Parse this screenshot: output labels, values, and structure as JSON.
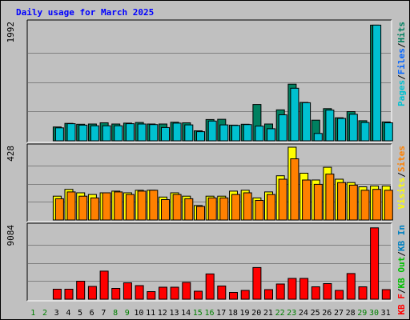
{
  "title": "Daily usage for March 2025",
  "colors": {
    "background": "#c0c0c0",
    "panel": "#c0c0c0",
    "grid": "#808080",
    "pages": "#00c0d0",
    "files": "#0064ff",
    "hits": "#008060",
    "visits": "#ffff00",
    "sites": "#ff8000",
    "kb_in": "#0080c0",
    "kb_out": "#00c000",
    "kb_f": "#ff0000",
    "weekday_label": "#000000",
    "weekend_label": "#008000"
  },
  "chart_data": {
    "type": "bar",
    "days": [
      "1",
      "2",
      "3",
      "4",
      "5",
      "6",
      "7",
      "8",
      "9",
      "10",
      "11",
      "12",
      "13",
      "14",
      "15",
      "16",
      "17",
      "18",
      "19",
      "20",
      "21",
      "22",
      "23",
      "24",
      "25",
      "26",
      "27",
      "28",
      "29",
      "30",
      "31"
    ],
    "weekend_days": [
      "1",
      "2",
      "8",
      "9",
      "15",
      "16",
      "22",
      "23",
      "29",
      "30"
    ],
    "panels": [
      {
        "id": "hits",
        "max_label": "1992",
        "ymax": 1992,
        "legend": [
          {
            "text": "Pages",
            "color": "#00c0d0"
          },
          {
            "text": "/",
            "color": "#000000"
          },
          {
            "text": "Files",
            "color": "#0064ff"
          },
          {
            "text": "/",
            "color": "#000000"
          },
          {
            "text": "Hits",
            "color": "#008060"
          }
        ],
        "series": [
          {
            "key": "hits",
            "color": "#008060",
            "values": [
              null,
              null,
              235,
              295,
              280,
              285,
              305,
              285,
              300,
              310,
              285,
              285,
              315,
              305,
              170,
              360,
              365,
              265,
              280,
              615,
              285,
              525,
              960,
              650,
              350,
              545,
              390,
              495,
              340,
              1960,
              320
            ]
          },
          {
            "key": "pages",
            "color": "#00c0d0",
            "values": [
              null,
              null,
              220,
              290,
              265,
              255,
              255,
              255,
              290,
              285,
              275,
              225,
              300,
              270,
              155,
              335,
              270,
              260,
              275,
              250,
              205,
              440,
              890,
              645,
              125,
              520,
              380,
              450,
              310,
              1960,
              305
            ]
          }
        ]
      },
      {
        "id": "visits",
        "max_label": "428",
        "ymax": 428,
        "legend": [
          {
            "text": "Visits",
            "color": "#ffff00"
          },
          {
            "text": "/",
            "color": "#000000"
          },
          {
            "text": "Sites",
            "color": "#ff8000"
          }
        ],
        "series": [
          {
            "key": "visits",
            "color": "#ffff00",
            "values": [
              null,
              null,
              140,
              180,
              160,
              150,
              160,
              170,
              160,
              175,
              175,
              135,
              160,
              140,
              85,
              140,
              140,
              170,
              175,
              130,
              165,
              260,
              428,
              275,
              235,
              310,
              240,
              220,
              195,
              200,
              200
            ]
          },
          {
            "key": "sites",
            "color": "#ff8000",
            "values": [
              null,
              null,
              125,
              165,
              140,
              130,
              160,
              165,
              150,
              170,
              175,
              120,
              150,
              125,
              80,
              130,
              130,
              150,
              160,
              115,
              150,
              240,
              360,
              235,
              210,
              270,
              220,
              205,
              175,
              180,
              175
            ]
          }
        ]
      },
      {
        "id": "kbytes",
        "max_label": "9084",
        "ymax": 9084,
        "legend": [
          {
            "text": "KB F",
            "color": "#ff0000"
          },
          {
            "text": "/",
            "color": "#000000"
          },
          {
            "text": "KB Out",
            "color": "#00c000"
          },
          {
            "text": "/",
            "color": "#000000"
          },
          {
            "text": "KB In",
            "color": "#0080c0"
          }
        ],
        "series": [
          {
            "key": "kb_f",
            "color": "#ff0000",
            "values": [
              null,
              null,
              1250,
              1250,
              2250,
              1600,
              3500,
              1350,
              2050,
              1700,
              950,
              1500,
              1500,
              2100,
              1000,
              3150,
              1650,
              850,
              1100,
              3950,
              1200,
              1900,
              2600,
              2600,
              1550,
              1950,
              1100,
              3200,
              1550,
              8900,
              1200
            ]
          }
        ]
      }
    ]
  }
}
